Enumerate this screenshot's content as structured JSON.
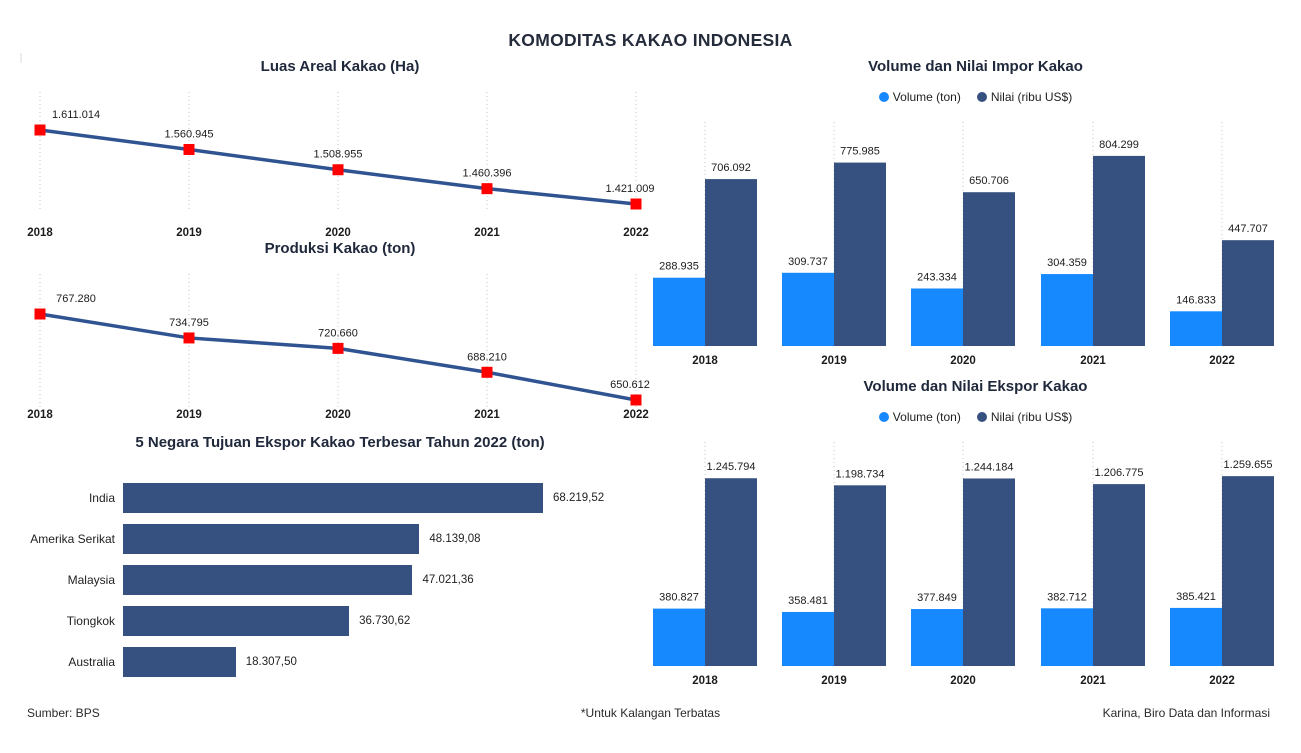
{
  "title": "KOMODITAS KAKAO INDONESIA",
  "footer": {
    "source": "Sumber: BPS",
    "note": "*Untuk Kalangan Terbatas",
    "credit": "Karina, Biro Data dan Informasi"
  },
  "colors": {
    "volume": "#1789FE",
    "nilai": "#36517F",
    "line": "#2F5491",
    "marker": "#FE0000",
    "grid": "#c3c3c3"
  },
  "chart_data": [
    {
      "id": "luas-areal",
      "type": "line",
      "title": "Luas Areal Kakao (Ha)",
      "categories": [
        "2018",
        "2019",
        "2020",
        "2021",
        "2022"
      ],
      "values": [
        1611014,
        1560945,
        1508955,
        1460396,
        1421009
      ],
      "value_labels": [
        "1.611.014",
        "1.560.945",
        "1.508.955",
        "1.460.396",
        "1.421.009"
      ],
      "marker": "red-square",
      "grid": "vertical-dotted"
    },
    {
      "id": "produksi",
      "type": "line",
      "title": "Produksi Kakao (ton)",
      "categories": [
        "2018",
        "2019",
        "2020",
        "2021",
        "2022"
      ],
      "values": [
        767280,
        734795,
        720660,
        688210,
        650612
      ],
      "value_labels": [
        "767.280",
        "734.795",
        "720.660",
        "688.210",
        "650.612"
      ],
      "marker": "red-square",
      "grid": "vertical-dotted"
    },
    {
      "id": "top-ekspor-2022",
      "type": "bar",
      "orientation": "horizontal",
      "title": "5 Negara Tujuan Ekspor Kakao Terbesar Tahun 2022 (ton)",
      "categories": [
        "India",
        "Amerika Serikat",
        "Malaysia",
        "Tiongkok",
        "Australia"
      ],
      "values": [
        68219.52,
        48139.08,
        47021.36,
        36730.62,
        18307.5
      ],
      "value_labels": [
        "68.219,52",
        "48.139,08",
        "47.021,36",
        "36.730,62",
        "18.307,50"
      ]
    },
    {
      "id": "impor",
      "type": "grouped-bar",
      "title": "Volume dan Nilai Impor Kakao",
      "categories": [
        "2018",
        "2019",
        "2020",
        "2021",
        "2022"
      ],
      "ylim": [
        0,
        880000
      ],
      "grid": "vertical-dotted",
      "legend_position": "top",
      "series": [
        {
          "name": "Volume (ton)",
          "color_key": "volume",
          "values": [
            288935,
            309737,
            243334,
            304359,
            146833
          ],
          "value_labels": [
            "288.935",
            "309.737",
            "243.334",
            "304.359",
            "146.833"
          ]
        },
        {
          "name": "Nilai (ribu US$)",
          "color_key": "nilai",
          "values": [
            706092,
            775985,
            650706,
            804299,
            447707
          ],
          "value_labels": [
            "706.092",
            "775.985",
            "650.706",
            "804.299",
            "447.707"
          ]
        }
      ]
    },
    {
      "id": "ekspor",
      "type": "grouped-bar",
      "title": "Volume dan Nilai Ekspor Kakao",
      "categories": [
        "2018",
        "2019",
        "2020",
        "2021",
        "2022"
      ],
      "ylim": [
        0,
        1380000
      ],
      "grid": "vertical-dotted",
      "legend_position": "top",
      "series": [
        {
          "name": "Volume (ton)",
          "color_key": "volume",
          "values": [
            380827,
            358481,
            377849,
            382712,
            385421
          ],
          "value_labels": [
            "380.827",
            "358.481",
            "377.849",
            "382.712",
            "385.421"
          ]
        },
        {
          "name": "Nilai (ribu US$)",
          "color_key": "nilai",
          "values": [
            1245794,
            1198734,
            1244184,
            1206775,
            1259655
          ],
          "value_labels": [
            "1.245.794",
            "1.198.734",
            "1.244.184",
            "1.206.775",
            "1.259.655"
          ]
        }
      ]
    }
  ]
}
